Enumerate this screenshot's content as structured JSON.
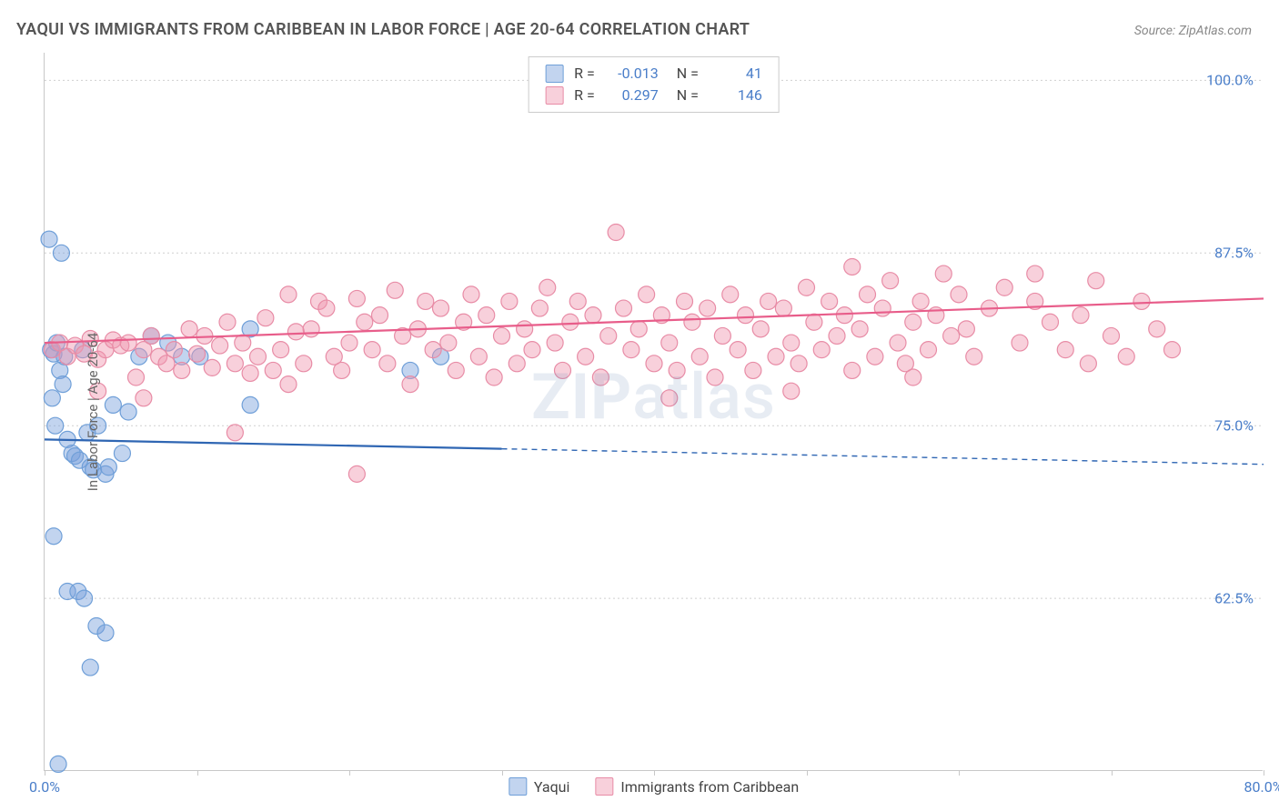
{
  "title": "YAQUI VS IMMIGRANTS FROM CARIBBEAN IN LABOR FORCE | AGE 20-64 CORRELATION CHART",
  "source": "Source: ZipAtlas.com",
  "watermark": "ZIPatlas",
  "y_axis_label": "In Labor Force | Age 20-64",
  "chart": {
    "type": "scatter",
    "background_color": "#ffffff",
    "grid_color": "#d0d0d0",
    "axis_color": "#c8c8c8",
    "xlim": [
      0.0,
      80.0
    ],
    "ylim": [
      50.0,
      102.0
    ],
    "x_ticks": [
      0.0,
      10.0,
      20.0,
      30.0,
      40.0,
      50.0,
      60.0,
      70.0,
      80.0
    ],
    "x_tick_labels": {
      "0": "0.0%",
      "80": "80.0%"
    },
    "y_ticks": [
      62.5,
      75.0,
      87.5,
      100.0
    ],
    "y_tick_labels": [
      "62.5%",
      "75.0%",
      "87.5%",
      "100.0%"
    ],
    "tick_label_color": "#4a7ec9",
    "tick_label_fontsize": 16,
    "series": [
      {
        "name": "Yaqui",
        "marker_fill": "rgba(120,160,220,0.45)",
        "marker_stroke": "#6f9fd8",
        "marker_radius": 9,
        "line_color": "#2f66b3",
        "line_width": 2.2,
        "trend_solid_xmax": 30.0,
        "trend": {
          "y_at_x0": 74.0,
          "y_at_x80": 72.2
        },
        "correlation_R": "-0.013",
        "correlation_N": "41",
        "points": [
          [
            0.4,
            80.5
          ],
          [
            0.6,
            80.2
          ],
          [
            0.8,
            81.0
          ],
          [
            1.0,
            79.0
          ],
          [
            1.2,
            78.0
          ],
          [
            0.5,
            77.0
          ],
          [
            0.7,
            75.0
          ],
          [
            1.5,
            74.0
          ],
          [
            1.8,
            73.0
          ],
          [
            2.0,
            72.8
          ],
          [
            2.3,
            72.5
          ],
          [
            2.8,
            74.5
          ],
          [
            3.0,
            72.0
          ],
          [
            3.2,
            71.8
          ],
          [
            3.5,
            75.0
          ],
          [
            4.0,
            71.5
          ],
          [
            4.2,
            72.0
          ],
          [
            4.5,
            76.5
          ],
          [
            0.3,
            88.5
          ],
          [
            1.1,
            87.5
          ],
          [
            2.5,
            80.5
          ],
          [
            0.6,
            67.0
          ],
          [
            1.5,
            63.0
          ],
          [
            2.2,
            63.0
          ],
          [
            2.6,
            62.5
          ],
          [
            3.4,
            60.5
          ],
          [
            4.0,
            60.0
          ],
          [
            3.0,
            57.5
          ],
          [
            0.9,
            50.5
          ],
          [
            1.3,
            80.0
          ],
          [
            5.1,
            73.0
          ],
          [
            5.5,
            76.0
          ],
          [
            6.2,
            80.0
          ],
          [
            7.0,
            81.5
          ],
          [
            8.1,
            81.0
          ],
          [
            9.0,
            80.0
          ],
          [
            10.2,
            80.0
          ],
          [
            13.5,
            82.0
          ],
          [
            13.5,
            76.5
          ],
          [
            24.0,
            79.0
          ],
          [
            26.0,
            80.0
          ]
        ]
      },
      {
        "name": "Immigrants from Caribbean",
        "marker_fill": "rgba(240,150,175,0.45)",
        "marker_stroke": "#e88ca6",
        "marker_radius": 9,
        "line_color": "#e85d8a",
        "line_width": 2.2,
        "trend_solid_xmax": 80.0,
        "trend": {
          "y_at_x0": 81.0,
          "y_at_x80": 84.2
        },
        "correlation_R": "0.297",
        "correlation_N": "146",
        "points": [
          [
            0.5,
            80.5
          ],
          [
            1.0,
            81.0
          ],
          [
            1.5,
            80.0
          ],
          [
            2.0,
            80.8
          ],
          [
            2.6,
            80.2
          ],
          [
            3.0,
            81.3
          ],
          [
            3.5,
            79.8
          ],
          [
            4.0,
            80.5
          ],
          [
            4.5,
            81.2
          ],
          [
            5.0,
            80.8
          ],
          [
            5.5,
            81.0
          ],
          [
            6.0,
            78.5
          ],
          [
            6.5,
            80.5
          ],
          [
            7.0,
            81.5
          ],
          [
            7.5,
            80.0
          ],
          [
            8.0,
            79.5
          ],
          [
            8.5,
            80.5
          ],
          [
            9.0,
            79.0
          ],
          [
            9.5,
            82.0
          ],
          [
            10.0,
            80.2
          ],
          [
            10.5,
            81.5
          ],
          [
            11.0,
            79.2
          ],
          [
            11.5,
            80.8
          ],
          [
            12.0,
            82.5
          ],
          [
            12.5,
            79.5
          ],
          [
            13.0,
            81.0
          ],
          [
            13.5,
            78.8
          ],
          [
            14.0,
            80.0
          ],
          [
            14.5,
            82.8
          ],
          [
            15.0,
            79.0
          ],
          [
            15.5,
            80.5
          ],
          [
            16.0,
            84.5
          ],
          [
            16.5,
            81.8
          ],
          [
            17.0,
            79.5
          ],
          [
            17.5,
            82.0
          ],
          [
            18.0,
            84.0
          ],
          [
            18.5,
            83.5
          ],
          [
            19.0,
            80.0
          ],
          [
            19.5,
            79.0
          ],
          [
            20.0,
            81.0
          ],
          [
            20.5,
            84.2
          ],
          [
            21.0,
            82.5
          ],
          [
            21.5,
            80.5
          ],
          [
            22.0,
            83.0
          ],
          [
            22.5,
            79.5
          ],
          [
            23.0,
            84.8
          ],
          [
            23.5,
            81.5
          ],
          [
            24.0,
            78.0
          ],
          [
            24.5,
            82.0
          ],
          [
            25.0,
            84.0
          ],
          [
            25.5,
            80.5
          ],
          [
            26.0,
            83.5
          ],
          [
            26.5,
            81.0
          ],
          [
            27.0,
            79.0
          ],
          [
            27.5,
            82.5
          ],
          [
            28.0,
            84.5
          ],
          [
            28.5,
            80.0
          ],
          [
            29.0,
            83.0
          ],
          [
            29.5,
            78.5
          ],
          [
            30.0,
            81.5
          ],
          [
            30.5,
            84.0
          ],
          [
            31.0,
            79.5
          ],
          [
            31.5,
            82.0
          ],
          [
            32.0,
            80.5
          ],
          [
            32.5,
            83.5
          ],
          [
            33.0,
            85.0
          ],
          [
            33.5,
            81.0
          ],
          [
            34.0,
            79.0
          ],
          [
            34.5,
            82.5
          ],
          [
            35.0,
            84.0
          ],
          [
            35.5,
            80.0
          ],
          [
            36.0,
            83.0
          ],
          [
            36.5,
            78.5
          ],
          [
            37.0,
            81.5
          ],
          [
            37.5,
            89.0
          ],
          [
            38.0,
            83.5
          ],
          [
            38.5,
            80.5
          ],
          [
            39.0,
            82.0
          ],
          [
            39.5,
            84.5
          ],
          [
            40.0,
            79.5
          ],
          [
            40.5,
            83.0
          ],
          [
            41.0,
            81.0
          ],
          [
            41.5,
            79.0
          ],
          [
            42.0,
            84.0
          ],
          [
            42.5,
            82.5
          ],
          [
            43.0,
            80.0
          ],
          [
            43.5,
            83.5
          ],
          [
            44.0,
            78.5
          ],
          [
            44.5,
            81.5
          ],
          [
            45.0,
            84.5
          ],
          [
            45.5,
            80.5
          ],
          [
            46.0,
            83.0
          ],
          [
            46.5,
            79.0
          ],
          [
            47.0,
            82.0
          ],
          [
            47.5,
            84.0
          ],
          [
            48.0,
            80.0
          ],
          [
            48.5,
            83.5
          ],
          [
            49.0,
            81.0
          ],
          [
            49.5,
            79.5
          ],
          [
            50.0,
            85.0
          ],
          [
            50.5,
            82.5
          ],
          [
            51.0,
            80.5
          ],
          [
            51.5,
            84.0
          ],
          [
            52.0,
            81.5
          ],
          [
            52.5,
            83.0
          ],
          [
            53.0,
            79.0
          ],
          [
            53.5,
            82.0
          ],
          [
            54.0,
            84.5
          ],
          [
            54.5,
            80.0
          ],
          [
            55.0,
            83.5
          ],
          [
            55.5,
            85.5
          ],
          [
            56.0,
            81.0
          ],
          [
            56.5,
            79.5
          ],
          [
            57.0,
            82.5
          ],
          [
            57.5,
            84.0
          ],
          [
            58.0,
            80.5
          ],
          [
            58.5,
            83.0
          ],
          [
            59.0,
            86.0
          ],
          [
            59.5,
            81.5
          ],
          [
            60.0,
            84.5
          ],
          [
            60.5,
            82.0
          ],
          [
            61.0,
            80.0
          ],
          [
            62.0,
            83.5
          ],
          [
            63.0,
            85.0
          ],
          [
            64.0,
            81.0
          ],
          [
            65.0,
            84.0
          ],
          [
            66.0,
            82.5
          ],
          [
            67.0,
            80.5
          ],
          [
            68.0,
            83.0
          ],
          [
            69.0,
            85.5
          ],
          [
            70.0,
            81.5
          ],
          [
            71.0,
            80.0
          ],
          [
            72.0,
            84.0
          ],
          [
            73.0,
            82.0
          ],
          [
            74.0,
            80.5
          ],
          [
            12.5,
            74.5
          ],
          [
            20.5,
            71.5
          ],
          [
            16.0,
            78.0
          ],
          [
            6.5,
            77.0
          ],
          [
            3.5,
            77.5
          ],
          [
            41.0,
            77.0
          ],
          [
            49.0,
            77.5
          ],
          [
            57.0,
            78.5
          ],
          [
            65.0,
            86.0
          ],
          [
            68.5,
            79.5
          ],
          [
            53.0,
            86.5
          ]
        ]
      }
    ]
  },
  "legend_bottom": [
    {
      "label": "Yaqui",
      "fill": "rgba(120,160,220,0.6)",
      "stroke": "#6f9fd8"
    },
    {
      "label": "Immigrants from Caribbean",
      "fill": "rgba(240,150,175,0.6)",
      "stroke": "#e88ca6"
    }
  ]
}
